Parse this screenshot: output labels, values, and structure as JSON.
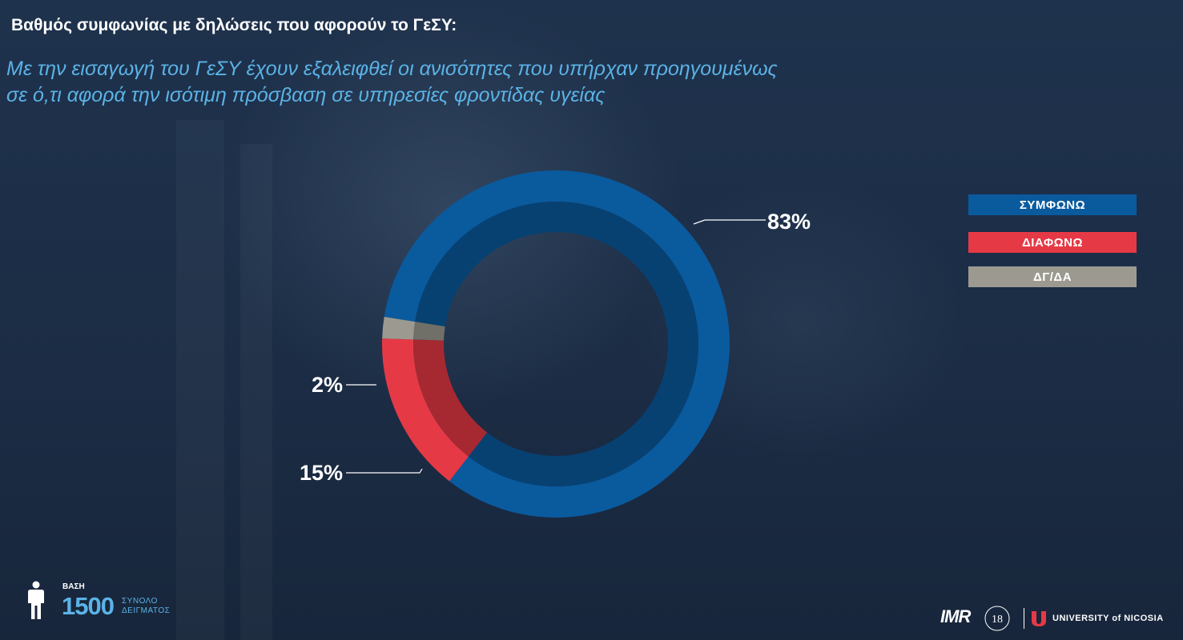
{
  "header": {
    "title": "Βαθμός συμφωνίας με δηλώσεις που αφορούν το ΓεΣΥ:",
    "subtitle_line1": "Με την εισαγωγή του ΓεΣΥ έχουν εξαλειφθεί οι ανισότητες που υπήρχαν προηγουμένως",
    "subtitle_line2": "σε ό,τι αφορά την ισότιμη πρόσβαση σε υπηρεσίες φροντίδας υγείας"
  },
  "chart_data": {
    "type": "pie",
    "variant": "donut",
    "categories": [
      "ΣΥΜΦΩΝΩ",
      "ΔΙΑΦΩΝΩ",
      "ΔΓ/ΔΑ"
    ],
    "values": [
      83,
      15,
      2
    ],
    "value_labels": [
      "83%",
      "15%",
      "2%"
    ],
    "colors": [
      "#0a5a9e",
      "#e63946",
      "#9c9a90"
    ],
    "legend_position": "right"
  },
  "legend": {
    "items": [
      {
        "label": "ΣΥΜΦΩΝΩ",
        "color": "#0a5a9e"
      },
      {
        "label": "ΔΙΑΦΩΝΩ",
        "color": "#e63946"
      },
      {
        "label": "ΔΓ/ΔΑ",
        "color": "#9c9a90"
      }
    ]
  },
  "footer": {
    "base_label": "ΒΑΣΗ",
    "base_value": "1500",
    "base_text_line1": "ΣΥΝΟΛΟ",
    "base_text_line2": "ΔΕΙΓΜΑΤΟΣ",
    "logo_imr": "IMR",
    "logo_seal": "18",
    "logo_university": "UNIVERSITY of NICOSIA"
  },
  "colors": {
    "accent": "#5bb3e6",
    "background": "#1c2d45"
  }
}
